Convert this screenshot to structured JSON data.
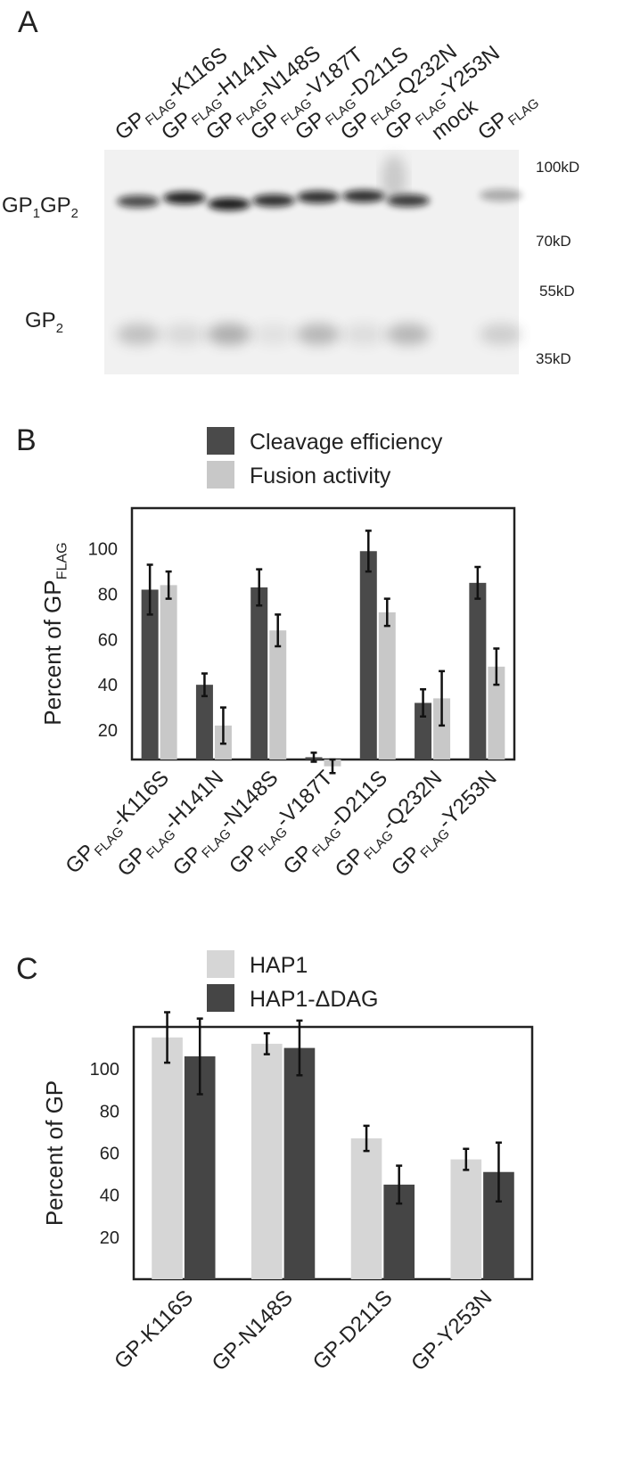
{
  "panel_a": {
    "label": "A",
    "lanes": {
      "prefix": [
        "GP",
        "FLAG"
      ],
      "mutants": [
        "-K116S",
        "-H141N",
        "-N148S",
        "-V187T",
        "-D211S",
        "-Q232N",
        "-Y253N"
      ],
      "mock": "mock",
      "control": [
        "GP",
        "FLAG"
      ]
    },
    "bands": {
      "full": [
        "GP",
        "1",
        "GP",
        "2"
      ],
      "gp2": [
        "GP",
        "2"
      ]
    },
    "markers": [
      "100kD",
      "70kD",
      "55kD",
      "35kD"
    ]
  },
  "chart_data": [
    {
      "type": "bar",
      "panel_label": "B",
      "y_label": [
        "Percent of GP",
        "FLAG"
      ],
      "category_prefix": [
        "GP",
        "FLAG"
      ],
      "categories": [
        "-K116S",
        "-H141N",
        "-N148S",
        "-V187T",
        "-D211S",
        "-Q232N",
        "-Y253N"
      ],
      "series": [
        {
          "name": "Cleavage efficiency",
          "color": "#4a4a4a",
          "values": [
            82,
            40,
            83,
            8,
            99,
            32,
            85
          ],
          "errors": [
            11,
            5,
            8,
            2,
            9,
            6,
            7
          ]
        },
        {
          "name": "Fusion activity",
          "color": "#c8c8c8",
          "values": [
            84,
            22,
            64,
            4,
            72,
            34,
            48
          ],
          "errors": [
            6,
            8,
            7,
            3,
            6,
            12,
            8
          ]
        }
      ],
      "ylim": [
        7,
        118
      ],
      "yticks": [
        20,
        40,
        60,
        80,
        100
      ]
    },
    {
      "type": "bar",
      "panel_label": "C",
      "y_label": [
        "Percent of GP"
      ],
      "categories": [
        "GP-K116S",
        "GP-N148S",
        "GP-D211S",
        "GP-Y253N"
      ],
      "series": [
        {
          "name": "HAP1",
          "color": "#d6d6d6",
          "values": [
            115,
            112,
            67,
            57
          ],
          "errors": [
            12,
            5,
            6,
            5
          ]
        },
        {
          "name": "HAP1-ΔDAG",
          "color": "#454545",
          "values": [
            106,
            110,
            45,
            51
          ],
          "errors": [
            18,
            13,
            9,
            14
          ]
        }
      ],
      "ylim": [
        0,
        120
      ],
      "yticks": [
        20,
        40,
        60,
        80,
        100
      ]
    }
  ]
}
